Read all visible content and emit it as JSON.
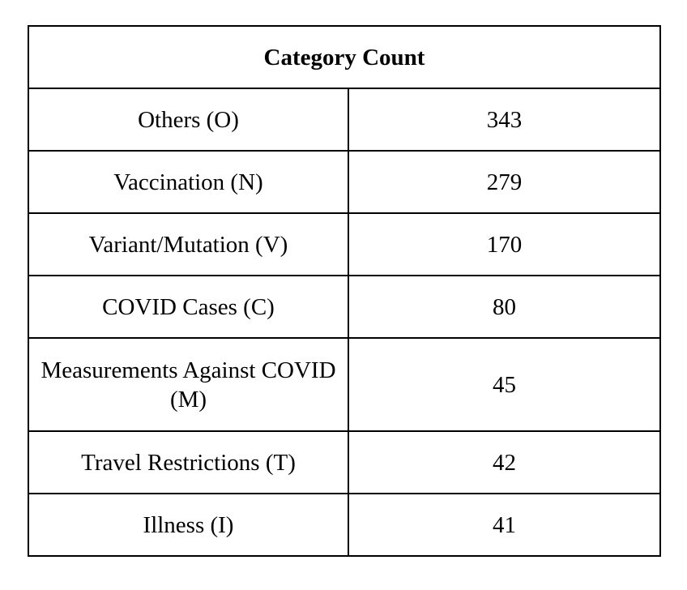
{
  "table": {
    "title": "Category Count",
    "rows": [
      {
        "category": "Others (O)",
        "count": "343"
      },
      {
        "category": "Vaccination (N)",
        "count": "279"
      },
      {
        "category": "Variant/Mutation (V)",
        "count": "170"
      },
      {
        "category": "COVID Cases (C)",
        "count": "80"
      },
      {
        "category": "Measurements Against COVID (M)",
        "count": "45"
      },
      {
        "category": "Travel Restrictions (T)",
        "count": "42"
      },
      {
        "category": "Illness (I)",
        "count": "41"
      }
    ]
  }
}
